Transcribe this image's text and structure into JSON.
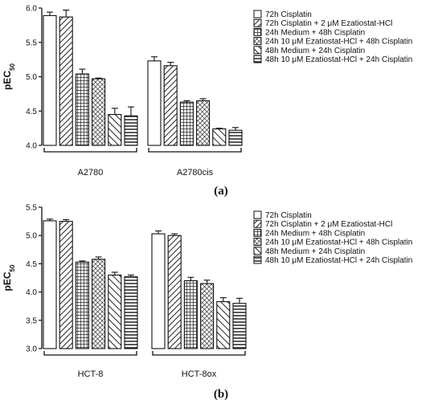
{
  "chart_data": [
    {
      "type": "bar",
      "panel_label": "(a)",
      "ylabel_main": "pEC",
      "ylabel_sub": "50",
      "ylim": [
        4.0,
        6.0
      ],
      "yticks": [
        "4.0",
        "4.5",
        "5.0",
        "5.5",
        "6.0"
      ],
      "legend_placement": "top-right",
      "categories": [
        "A2780",
        "A2780cis"
      ],
      "series": [
        {
          "name": "72h Cisplatin",
          "values": [
            5.89,
            5.23
          ],
          "errors": [
            0.05,
            0.06
          ]
        },
        {
          "name": "72h Cisplatin + 2 μM Ezatiostat-HCl",
          "values": [
            5.87,
            5.16
          ],
          "errors": [
            0.1,
            0.05
          ]
        },
        {
          "name": "24h Medium + 48h Cisplatin",
          "values": [
            5.04,
            4.63
          ],
          "errors": [
            0.07,
            0.02
          ]
        },
        {
          "name": "24h 10 μM Ezatiostat-HCl + 48h Cisplatin",
          "values": [
            4.97,
            4.65
          ],
          "errors": [
            0.01,
            0.03
          ]
        },
        {
          "name": "48h Medium + 24h Cisplatin",
          "values": [
            4.45,
            4.24
          ],
          "errors": [
            0.09,
            0.01
          ]
        },
        {
          "name": "48h 10 μM Ezatiostat-HCl + 24h Cisplatin",
          "values": [
            4.43,
            4.22
          ],
          "errors": [
            0.13,
            0.04
          ]
        }
      ]
    },
    {
      "type": "bar",
      "panel_label": "(b)",
      "ylabel_main": "pEC",
      "ylabel_sub": "50",
      "ylim": [
        3.0,
        5.5
      ],
      "yticks": [
        "3.0",
        "3.5",
        "4.0",
        "4.5",
        "5.0",
        "5.5"
      ],
      "legend_placement": "top-right",
      "categories": [
        "HCT-8",
        "HCT-8ox"
      ],
      "series": [
        {
          "name": "72h Cisplatin",
          "values": [
            5.26,
            5.03
          ],
          "errors": [
            0.03,
            0.05
          ]
        },
        {
          "name": "72h Cisplatin + 2 μM Ezatiostat-HCl",
          "values": [
            5.25,
            5.0
          ],
          "errors": [
            0.03,
            0.03
          ]
        },
        {
          "name": "24h Medium + 48h Cisplatin",
          "values": [
            4.53,
            4.2
          ],
          "errors": [
            0.02,
            0.06
          ]
        },
        {
          "name": "24h 10 μM Ezatiostat-HCl + 48h Cisplatin",
          "values": [
            4.58,
            4.15
          ],
          "errors": [
            0.04,
            0.06
          ]
        },
        {
          "name": "48h Medium + 24h Cisplatin",
          "values": [
            4.3,
            3.83
          ],
          "errors": [
            0.05,
            0.07
          ]
        },
        {
          "name": "48h 10 μM Ezatiostat-HCl + 24h Cisplatin",
          "values": [
            4.27,
            3.8
          ],
          "errors": [
            0.03,
            0.09
          ]
        }
      ]
    }
  ]
}
